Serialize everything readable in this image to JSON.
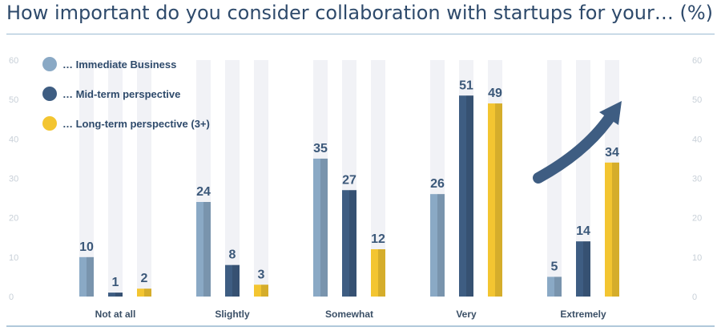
{
  "title": "How important do you consider collaboration with startups for your… (%)",
  "chart_data": {
    "type": "bar",
    "categories": [
      "Not at all",
      "Slightly",
      "Somewhat",
      "Very",
      "Extremely"
    ],
    "series": [
      {
        "name": "… Immediate Business",
        "values": [
          10,
          24,
          35,
          26,
          5
        ],
        "color": "#8aa9c5"
      },
      {
        "name": "… Mid-term perspective",
        "values": [
          1,
          8,
          27,
          51,
          14
        ],
        "color": "#3e5d82"
      },
      {
        "name": "… Long-term perspective (3+)",
        "values": [
          2,
          3,
          12,
          49,
          34
        ],
        "color": "#f3c531"
      }
    ],
    "ylim": [
      0,
      60
    ],
    "yticks": [
      0,
      10,
      20,
      30,
      40,
      50,
      60
    ],
    "grid": false,
    "legend": "top-left",
    "background_bar_color": "#f1f2f6",
    "annotation": "upward-trend-arrow"
  }
}
